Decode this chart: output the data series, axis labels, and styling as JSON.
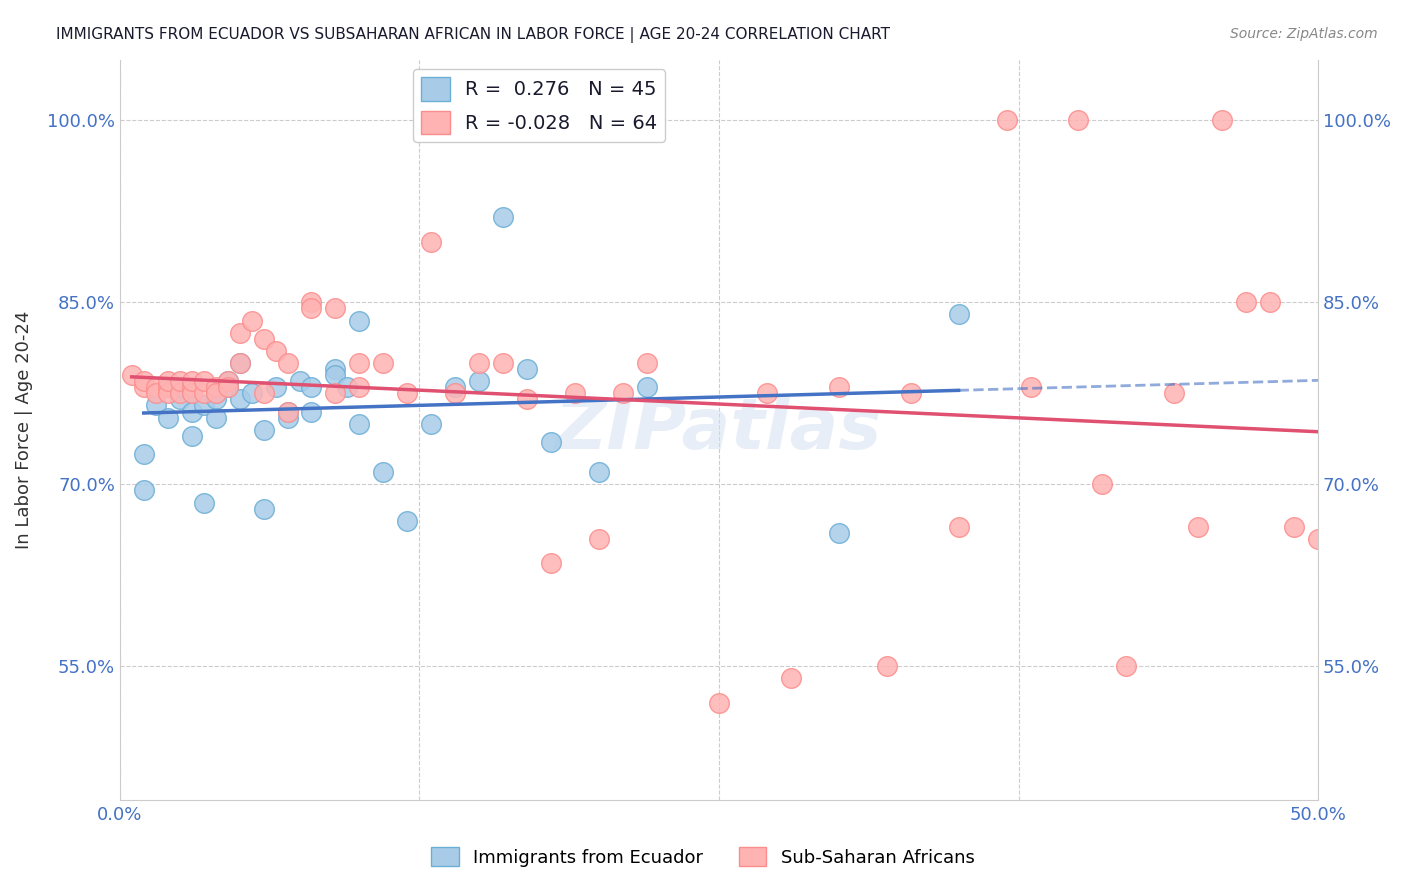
{
  "title": "IMMIGRANTS FROM ECUADOR VS SUBSAHARAN AFRICAN IN LABOR FORCE | AGE 20-24 CORRELATION CHART",
  "source": "Source: ZipAtlas.com",
  "ylabel": "In Labor Force | Age 20-24",
  "ytick_labels": [
    "100.0%",
    "85.0%",
    "70.0%",
    "55.0%"
  ],
  "ytick_values": [
    1.0,
    0.85,
    0.7,
    0.55
  ],
  "xlim": [
    0.0,
    0.5
  ],
  "ylim": [
    0.44,
    1.05
  ],
  "legend_label1": "R =  0.276   N = 45",
  "legend_label2": "R = -0.028   N = 64",
  "watermark": "ZIPatlas",
  "ecuador_x": [
    0.01,
    0.01,
    0.015,
    0.02,
    0.02,
    0.025,
    0.025,
    0.03,
    0.03,
    0.03,
    0.035,
    0.035,
    0.04,
    0.04,
    0.04,
    0.045,
    0.045,
    0.05,
    0.05,
    0.055,
    0.06,
    0.06,
    0.065,
    0.07,
    0.07,
    0.075,
    0.08,
    0.08,
    0.09,
    0.09,
    0.095,
    0.1,
    0.1,
    0.11,
    0.12,
    0.13,
    0.14,
    0.15,
    0.16,
    0.17,
    0.18,
    0.2,
    0.22,
    0.3,
    0.35
  ],
  "ecuador_y": [
    0.695,
    0.725,
    0.765,
    0.78,
    0.755,
    0.77,
    0.78,
    0.775,
    0.76,
    0.74,
    0.685,
    0.765,
    0.775,
    0.77,
    0.755,
    0.78,
    0.785,
    0.77,
    0.8,
    0.775,
    0.68,
    0.745,
    0.78,
    0.76,
    0.755,
    0.785,
    0.78,
    0.76,
    0.795,
    0.79,
    0.78,
    0.835,
    0.75,
    0.71,
    0.67,
    0.75,
    0.78,
    0.785,
    0.92,
    0.795,
    0.735,
    0.71,
    0.78,
    0.66,
    0.84
  ],
  "subsaharan_x": [
    0.005,
    0.01,
    0.01,
    0.015,
    0.015,
    0.02,
    0.02,
    0.02,
    0.025,
    0.025,
    0.03,
    0.03,
    0.03,
    0.035,
    0.035,
    0.04,
    0.04,
    0.045,
    0.045,
    0.05,
    0.05,
    0.055,
    0.06,
    0.06,
    0.065,
    0.07,
    0.07,
    0.08,
    0.08,
    0.09,
    0.09,
    0.1,
    0.1,
    0.11,
    0.12,
    0.13,
    0.14,
    0.15,
    0.16,
    0.17,
    0.18,
    0.19,
    0.2,
    0.21,
    0.22,
    0.25,
    0.27,
    0.28,
    0.3,
    0.32,
    0.33,
    0.35,
    0.37,
    0.38,
    0.4,
    0.41,
    0.42,
    0.44,
    0.45,
    0.46,
    0.47,
    0.48,
    0.49,
    0.5
  ],
  "subsaharan_y": [
    0.79,
    0.78,
    0.785,
    0.78,
    0.775,
    0.78,
    0.775,
    0.785,
    0.775,
    0.785,
    0.78,
    0.775,
    0.785,
    0.775,
    0.785,
    0.78,
    0.775,
    0.785,
    0.78,
    0.8,
    0.825,
    0.835,
    0.82,
    0.775,
    0.81,
    0.76,
    0.8,
    0.85,
    0.845,
    0.845,
    0.775,
    0.8,
    0.78,
    0.8,
    0.775,
    0.9,
    0.775,
    0.8,
    0.8,
    0.77,
    0.635,
    0.775,
    0.655,
    0.775,
    0.8,
    0.52,
    0.775,
    0.54,
    0.78,
    0.55,
    0.775,
    0.665,
    1.0,
    0.78,
    1.0,
    0.7,
    0.55,
    0.775,
    0.665,
    1.0,
    0.85,
    0.85,
    0.665,
    0.655
  ]
}
